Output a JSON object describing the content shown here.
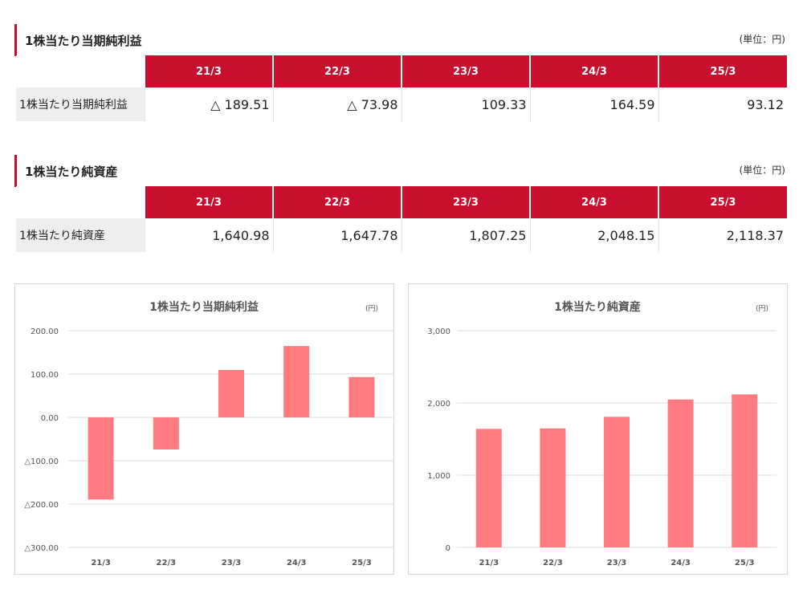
{
  "eps_section": {
    "title": "1株当たり当期純利益",
    "unit": "(単位：円)",
    "headers": [
      "21/3",
      "22/3",
      "23/3",
      "24/3",
      "25/3"
    ],
    "row_label": "1株当たり当期純利益",
    "values": [
      "△ 189.51",
      "△ 73.98",
      "109.33",
      "164.59",
      "93.12"
    ]
  },
  "bps_section": {
    "title": "1株当たり純資産",
    "unit": "(単位：円)",
    "headers": [
      "21/3",
      "22/3",
      "23/3",
      "24/3",
      "25/3"
    ],
    "row_label": "1株当たり純資産",
    "values": [
      "1,640.98",
      "1,647.78",
      "1,807.25",
      "2,048.15",
      "2,118.37"
    ]
  },
  "colors": {
    "accent": "#c8102e",
    "bar": "#ff7b7f",
    "grid": "#dedede",
    "label_bg": "#eeeeee"
  },
  "chart_data": [
    {
      "type": "bar",
      "title": "1株当たり当期純利益",
      "unit": "(円)",
      "categories": [
        "21/3",
        "22/3",
        "23/3",
        "24/3",
        "25/3"
      ],
      "values": [
        -189.51,
        -73.98,
        109.33,
        164.59,
        93.12
      ],
      "ylim": [
        -300,
        200
      ],
      "yticks": [
        200,
        100,
        0,
        -100,
        -200,
        -300
      ],
      "ytick_labels": [
        "200.00",
        "100.00",
        "0.00",
        "△100.00",
        "△200.00",
        "△300.00"
      ],
      "grid": true,
      "bar_color": "#ff7b7f"
    },
    {
      "type": "bar",
      "title": "1株当たり純資産",
      "unit": "(円)",
      "categories": [
        "21/3",
        "22/3",
        "23/3",
        "24/3",
        "25/3"
      ],
      "values": [
        1640.98,
        1647.78,
        1807.25,
        2048.15,
        2118.37
      ],
      "ylim": [
        0,
        3000
      ],
      "yticks": [
        3000,
        2000,
        1000,
        0
      ],
      "ytick_labels": [
        "3,000",
        "2,000",
        "1,000",
        "0"
      ],
      "grid": true,
      "bar_color": "#ff7b7f"
    }
  ]
}
